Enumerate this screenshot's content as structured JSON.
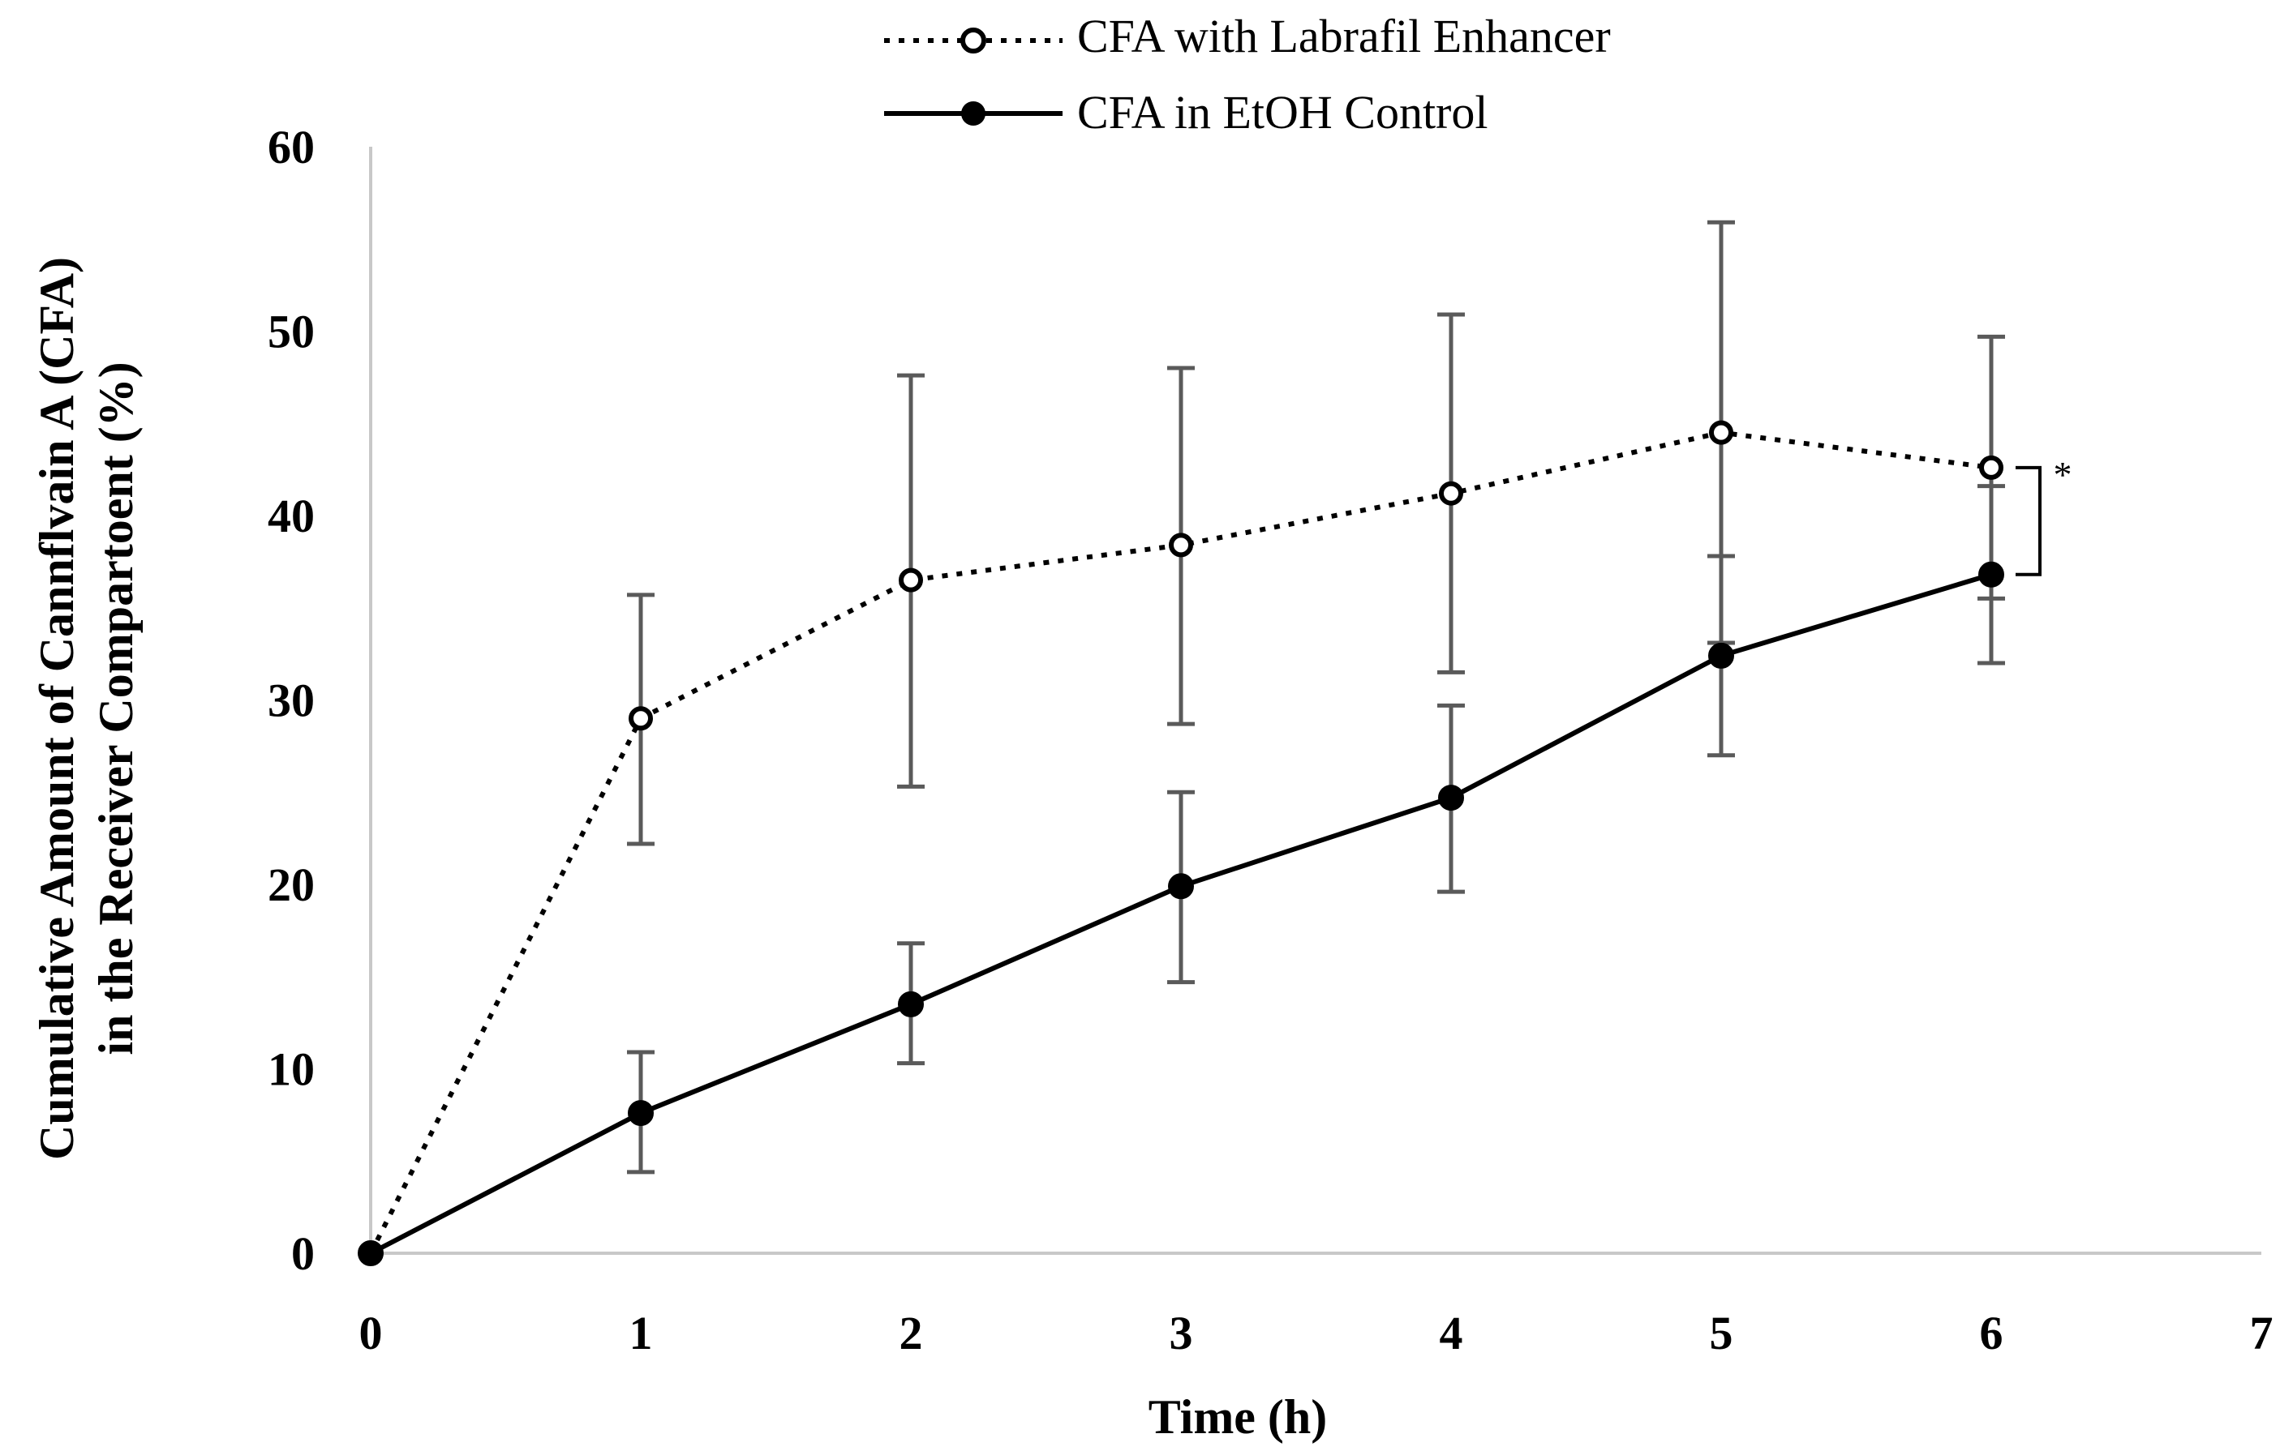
{
  "chart_data": {
    "type": "line",
    "title": "",
    "xlabel": "Time (h)",
    "ylabel": [
      "Cumulative Amount of  Cannflvain A (CFA)",
      "in the Receiver Compartoent (%)"
    ],
    "xlim": [
      0,
      7
    ],
    "ylim": [
      0,
      60
    ],
    "x_ticks": [
      0,
      1,
      2,
      3,
      4,
      5,
      6,
      7
    ],
    "y_ticks": [
      0,
      10,
      20,
      30,
      40,
      50,
      60
    ],
    "legend_position": "top-center",
    "series": [
      {
        "name": "CFA with Labrafil Enhancer",
        "style": "dotted-open-circle",
        "x": [
          0,
          1,
          2,
          3,
          4,
          5,
          6
        ],
        "values": [
          0,
          29.0,
          36.5,
          38.4,
          41.2,
          44.5,
          42.6
        ],
        "error_low": [
          0,
          22.2,
          25.3,
          28.7,
          31.5,
          33.1,
          35.5
        ],
        "error_high": [
          0,
          35.7,
          47.6,
          48.0,
          50.9,
          55.9,
          49.7
        ]
      },
      {
        "name": "CFA in EtOH Control",
        "style": "solid-filled-circle",
        "x": [
          0,
          1,
          2,
          3,
          4,
          5,
          6
        ],
        "values": [
          0,
          7.6,
          13.5,
          19.9,
          24.7,
          32.4,
          36.8
        ],
        "error_low": [
          0,
          4.4,
          10.3,
          14.7,
          19.6,
          27.0,
          32.0
        ],
        "error_high": [
          0,
          10.9,
          16.8,
          25.0,
          29.7,
          37.8,
          41.6
        ]
      }
    ],
    "annotations": [
      {
        "text": "*",
        "x": 6,
        "y_range": [
          36.8,
          42.6
        ]
      }
    ],
    "colors": {
      "axis": "#c8c8c8",
      "error_bar": "#5a5a5a",
      "series": "#000000"
    }
  }
}
